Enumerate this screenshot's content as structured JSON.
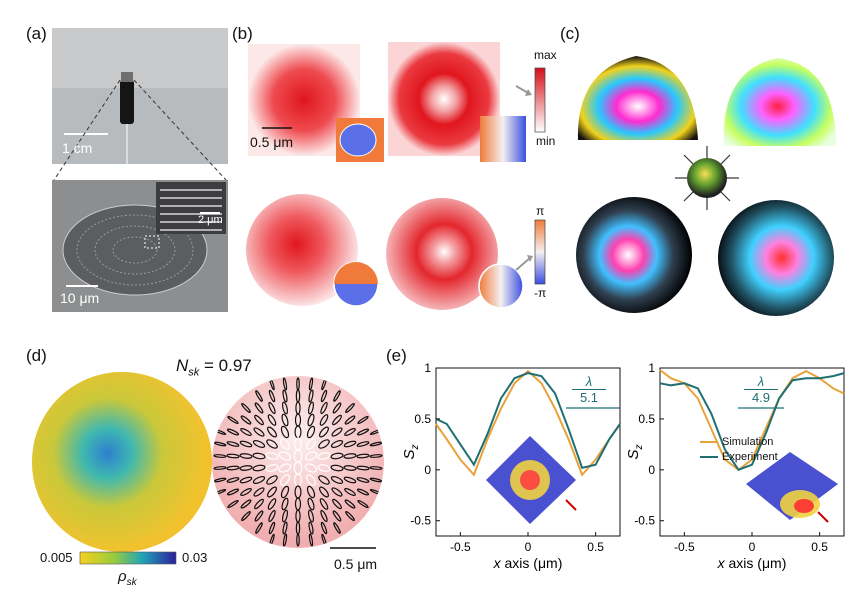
{
  "panels": {
    "a": {
      "label": "(a)",
      "scale_top": "1 cm",
      "scale_bottom": "10 μm",
      "scale_inset": "2 μm"
    },
    "b": {
      "label": "(b)",
      "scale": "0.5 μm",
      "amp_max": "max",
      "amp_min": "min",
      "phase_max": "π",
      "phase_min": "-π",
      "colors": {
        "amp": "#e0161e",
        "phase_pos": "#f07a3a",
        "phase_neg": "#3a4fe0"
      }
    },
    "c": {
      "label": "(c)"
    },
    "d": {
      "label": "(d)",
      "nsk_symbol": "N",
      "nsk_sub": "sk",
      "nsk_value": "= 0.97",
      "cbar_min": "0.005",
      "cbar_max": "0.03",
      "cbar_symbol": "ρ",
      "cbar_sub": "sk",
      "scale": "0.5 μm"
    },
    "e": {
      "label": "(e)",
      "left_fraction": {
        "num": "λ",
        "den": "5.1"
      },
      "right_fraction": {
        "num": "λ",
        "den": "4.9"
      },
      "legend": [
        "Simulation",
        "Experiment"
      ],
      "series_colors": {
        "Simulation": "#e8a23a",
        "Experiment": "#1f6f73"
      }
    }
  },
  "chart_data": [
    {
      "type": "line",
      "xlabel": "x axis (μm)",
      "ylabel": "S",
      "ylabel_sub": "z",
      "xlim": [
        -0.68,
        0.68
      ],
      "ylim": [
        -0.65,
        1.0
      ],
      "xticks": [
        "-0.5",
        "0",
        "0.5"
      ],
      "yticks": [
        "1",
        "0.5",
        "0",
        "-0.5"
      ],
      "x": [
        -0.68,
        -0.6,
        -0.5,
        -0.4,
        -0.3,
        -0.2,
        -0.1,
        0,
        0.1,
        0.2,
        0.3,
        0.4,
        0.5,
        0.6,
        0.68
      ],
      "series": [
        {
          "name": "Simulation",
          "values": [
            0.45,
            0.3,
            0.1,
            -0.05,
            0.3,
            0.6,
            0.85,
            0.97,
            0.85,
            0.6,
            0.3,
            -0.05,
            0.1,
            0.3,
            0.45
          ]
        },
        {
          "name": "Experiment",
          "values": [
            0.5,
            0.45,
            0.25,
            0.05,
            0.35,
            0.7,
            0.9,
            0.95,
            0.92,
            0.75,
            0.4,
            0.02,
            0.05,
            0.3,
            0.45
          ]
        }
      ]
    },
    {
      "type": "line",
      "xlabel": "x axis (μm)",
      "ylabel": "S",
      "ylabel_sub": "z",
      "xlim": [
        -0.68,
        0.68
      ],
      "ylim": [
        -0.65,
        1.0
      ],
      "xticks": [
        "-0.5",
        "0",
        "0.5"
      ],
      "yticks": [
        "1",
        "0.5",
        "0",
        "-0.5"
      ],
      "x": [
        -0.68,
        -0.6,
        -0.5,
        -0.4,
        -0.3,
        -0.2,
        -0.1,
        0,
        0.1,
        0.2,
        0.3,
        0.4,
        0.5,
        0.6,
        0.68
      ],
      "series": [
        {
          "name": "Simulation",
          "values": [
            0.98,
            0.9,
            0.85,
            0.7,
            0.4,
            0.1,
            0.0,
            0.1,
            0.4,
            0.7,
            0.9,
            0.97,
            0.9,
            0.8,
            0.75
          ]
        },
        {
          "name": "Experiment",
          "values": [
            0.85,
            0.83,
            0.85,
            0.8,
            0.55,
            0.2,
            0.0,
            0.05,
            0.35,
            0.7,
            0.88,
            0.9,
            0.9,
            0.92,
            0.95
          ]
        }
      ]
    }
  ]
}
